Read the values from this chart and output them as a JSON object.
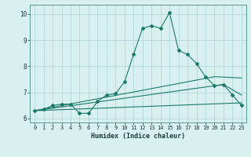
{
  "xlabel": "Humidex (Indice chaleur)",
  "bg_color": "#d8f0ee",
  "grid_color": "#b0d8d4",
  "line_color": "#1a7a6a",
  "xlim": [
    -0.5,
    23.5
  ],
  "ylim": [
    5.85,
    10.35
  ],
  "xticks": [
    0,
    1,
    2,
    3,
    4,
    5,
    6,
    7,
    8,
    9,
    10,
    11,
    12,
    13,
    14,
    15,
    16,
    17,
    18,
    19,
    20,
    21,
    22,
    23
  ],
  "yticks": [
    6,
    7,
    8,
    9,
    10
  ],
  "main_line": [
    [
      0,
      6.3
    ],
    [
      1,
      6.35
    ],
    [
      2,
      6.5
    ],
    [
      3,
      6.55
    ],
    [
      4,
      6.55
    ],
    [
      5,
      6.2
    ],
    [
      6,
      6.2
    ],
    [
      7,
      6.65
    ],
    [
      8,
      6.9
    ],
    [
      9,
      6.95
    ],
    [
      10,
      7.4
    ],
    [
      11,
      8.45
    ],
    [
      12,
      9.45
    ],
    [
      13,
      9.55
    ],
    [
      14,
      9.45
    ],
    [
      15,
      10.05
    ],
    [
      16,
      8.6
    ],
    [
      17,
      8.45
    ],
    [
      18,
      8.1
    ],
    [
      19,
      7.6
    ],
    [
      20,
      7.25
    ],
    [
      21,
      7.3
    ],
    [
      22,
      6.9
    ],
    [
      23,
      6.5
    ]
  ],
  "line2": [
    [
      0,
      6.3
    ],
    [
      23,
      6.6
    ]
  ],
  "line3": [
    [
      0,
      6.3
    ],
    [
      21,
      7.3
    ],
    [
      23,
      6.9
    ]
  ],
  "line4": [
    [
      0,
      6.3
    ],
    [
      20,
      7.6
    ],
    [
      23,
      7.55
    ]
  ]
}
